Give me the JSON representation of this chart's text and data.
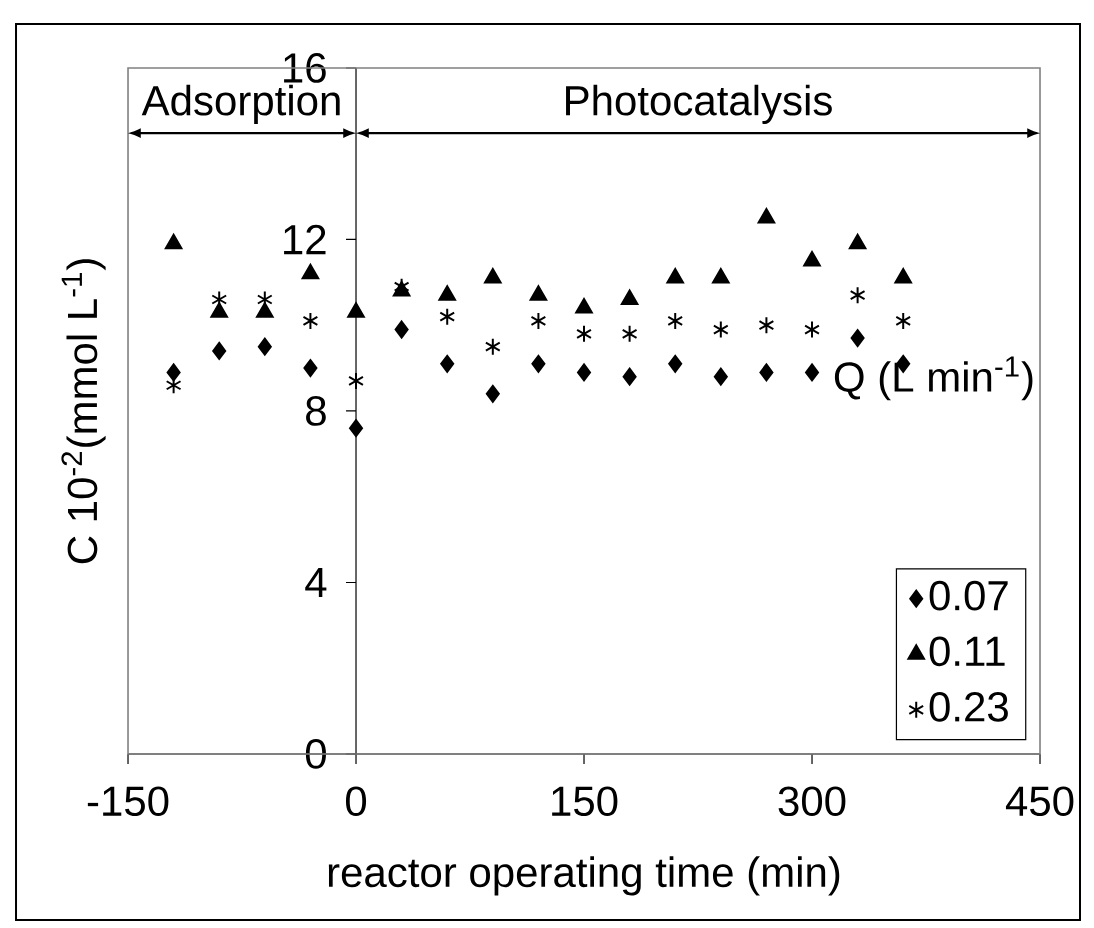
{
  "chart_data": {
    "type": "scatter",
    "xlabel": "reactor operating  time (min)",
    "ylabel": "C 10$^{-2}$(mmol L$^{-1}$)",
    "legend_title": "Q (L min$^{-1}$)",
    "x": [
      -120,
      -90,
      -60,
      -30,
      0,
      30,
      60,
      90,
      120,
      150,
      180,
      210,
      240,
      270,
      300,
      330,
      360
    ],
    "series": [
      {
        "name": "0.07",
        "color": "#000000",
        "marker": "diamond",
        "values": [
          8.9,
          9.4,
          9.5,
          9.0,
          7.6,
          9.9,
          9.1,
          8.4,
          9.1,
          8.9,
          8.8,
          9.1,
          8.8,
          8.9,
          8.9,
          9.7,
          9.1
        ]
      },
      {
        "name": "0.11",
        "color": "#000000",
        "marker": "triangle",
        "values": [
          11.9,
          10.3,
          10.3,
          11.2,
          10.3,
          10.8,
          10.7,
          11.1,
          10.7,
          10.4,
          10.6,
          11.1,
          11.1,
          12.5,
          11.5,
          11.9,
          11.1
        ]
      },
      {
        "name": "0.23",
        "color": "#000000",
        "marker": "cross",
        "values": [
          8.6,
          10.6,
          10.6,
          10.1,
          8.7,
          10.9,
          10.2,
          9.5,
          10.1,
          9.8,
          9.8,
          10.1,
          9.9,
          10.0,
          9.9,
          10.7,
          10.1
        ]
      }
    ],
    "annotations": [
      "Adsorption",
      "Photocatalysis"
    ],
    "xlim": [
      -150,
      450
    ],
    "xticks": [
      -150,
      0,
      150,
      300,
      450
    ],
    "ylim": [
      0,
      16
    ],
    "yticks": [
      0,
      4,
      8,
      12,
      16
    ],
    "grid": false,
    "legend": "bottom right"
  }
}
